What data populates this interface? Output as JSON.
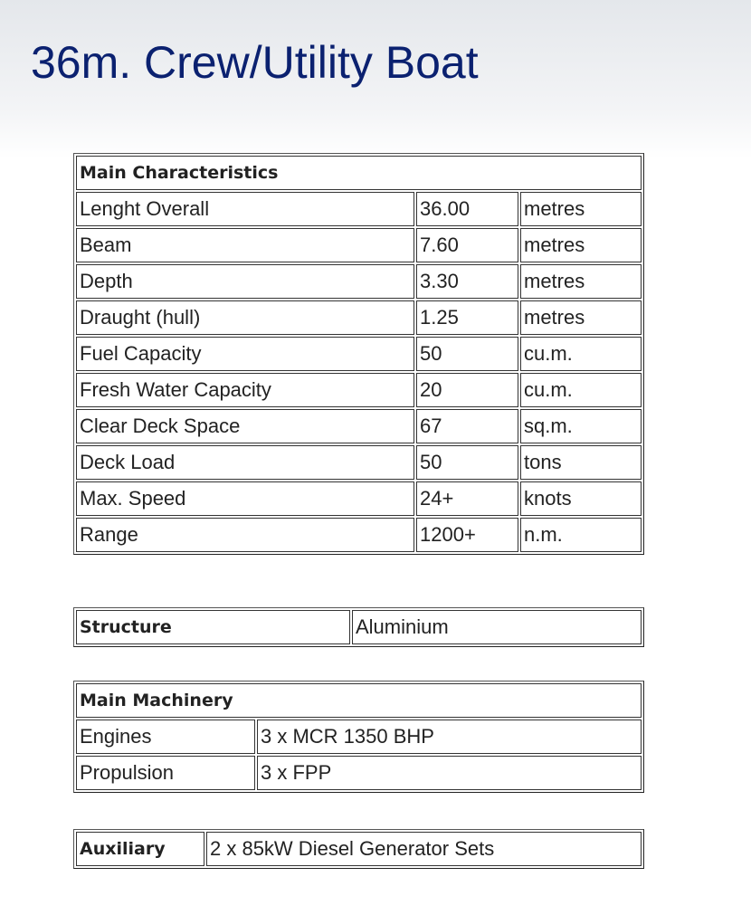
{
  "title": "36m. Crew/Utility Boat",
  "main_characteristics": {
    "header": "Main Characteristics",
    "rows": [
      {
        "label": "Lenght Overall",
        "value": "36.00",
        "unit": "metres"
      },
      {
        "label": "Beam",
        "value": "7.60",
        "unit": "metres"
      },
      {
        "label": "Depth",
        "value": "3.30",
        "unit": "metres"
      },
      {
        "label": "Draught (hull)",
        "value": "1.25",
        "unit": "metres"
      },
      {
        "label": "Fuel Capacity",
        "value": "50",
        "unit": "cu.m."
      },
      {
        "label": "Fresh Water Capacity",
        "value": "20",
        "unit": "cu.m."
      },
      {
        "label": "Clear Deck Space",
        "value": "67",
        "unit": "sq.m."
      },
      {
        "label": "Deck Load",
        "value": "50",
        "unit": "tons"
      },
      {
        "label": "Max. Speed",
        "value": "24+",
        "unit": "knots"
      },
      {
        "label": "Range",
        "value": "1200+",
        "unit": "n.m."
      }
    ]
  },
  "structure": {
    "header": "Structure",
    "value": "Aluminium"
  },
  "main_machinery": {
    "header": "Main Machinery",
    "rows": [
      {
        "label": "Engines",
        "value": "3 x MCR 1350 BHP"
      },
      {
        "label": "Propulsion",
        "value": "3 x FPP"
      }
    ]
  },
  "auxiliary": {
    "header": "Auxiliary",
    "value": "2 x 85kW Diesel Generator Sets"
  }
}
